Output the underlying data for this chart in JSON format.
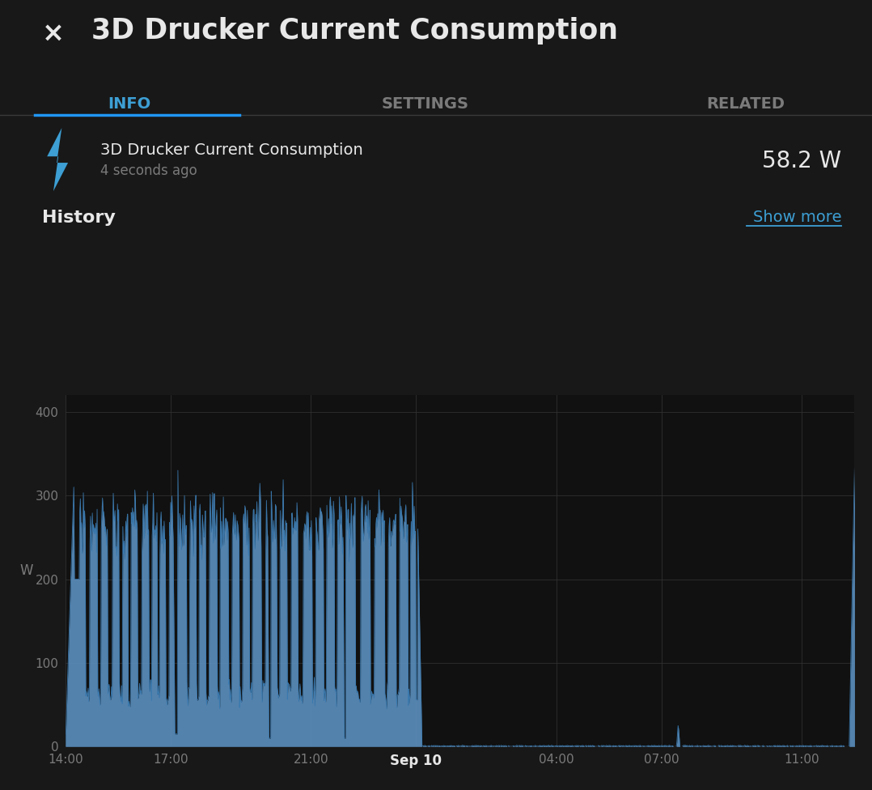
{
  "title": "3D Drucker Current Consumption",
  "subtitle_name": "3D Drucker Current Consumption",
  "subtitle_time": "4 seconds ago",
  "current_value": "58.2 W",
  "history_label": "History",
  "show_more_label": "Show more",
  "tab_info": "INFO",
  "tab_settings": "SETTINGS",
  "tab_related": "RELATED",
  "ylabel": "W",
  "bg_color": "#181818",
  "plot_bg_color": "#111111",
  "chart_fill_color": "#5b8fbe",
  "chart_line_color": "#3a7ab0",
  "grid_color": "#333333",
  "text_color_white": "#e8e8e8",
  "text_color_gray": "#7a7a7a",
  "text_color_blue": "#3d9fd4",
  "accent_blue": "#2196F3",
  "yticks": [
    0,
    100,
    200,
    300,
    400
  ],
  "ylim": [
    0,
    420
  ],
  "xtick_labels": [
    "14:00",
    "17:00",
    "21:00",
    "Sep 10",
    "04:00",
    "07:00",
    "11:00"
  ],
  "figsize": [
    10.78,
    9.76
  ],
  "dpi": 100
}
